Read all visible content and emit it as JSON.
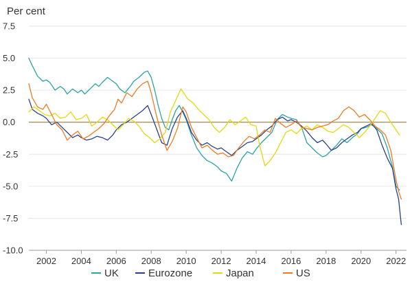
{
  "chart_data": {
    "type": "line",
    "unit_label": "Per cent",
    "ylim": [
      -10.0,
      7.5
    ],
    "yticks": [
      7.5,
      5.0,
      2.5,
      0.0,
      -2.5,
      -5.0,
      -7.5,
      -10.0
    ],
    "ytick_labels": [
      "7.5",
      "5.0",
      "2.5",
      "0.0",
      "-2.5",
      "-5.0",
      "-7.5",
      "-10.0"
    ],
    "xlim": [
      2001.0,
      2022.6
    ],
    "xticks": [
      2002,
      2004,
      2006,
      2008,
      2010,
      2012,
      2014,
      2016,
      2018,
      2020,
      2022
    ],
    "xtick_labels": [
      "2002",
      "2004",
      "2006",
      "2008",
      "2010",
      "2012",
      "2014",
      "2016",
      "2018",
      "2020",
      "2022"
    ],
    "grid": true,
    "legend_position": "bottom",
    "zero_line_color": "#8a6a2a",
    "series": [
      {
        "name": "UK",
        "color": "#2aa3a6",
        "x": [
          2001.0,
          2001.2,
          2001.5,
          2001.8,
          2002.0,
          2002.2,
          2002.5,
          2002.8,
          2003.0,
          2003.2,
          2003.5,
          2003.8,
          2004.0,
          2004.2,
          2004.5,
          2004.8,
          2005.0,
          2005.2,
          2005.5,
          2005.8,
          2006.0,
          2006.2,
          2006.5,
          2006.8,
          2007.0,
          2007.3,
          2007.6,
          2007.8,
          2008.0,
          2008.2,
          2008.4,
          2008.6,
          2008.8,
          2009.0,
          2009.2,
          2009.4,
          2009.6,
          2009.8,
          2010.0,
          2010.3,
          2010.6,
          2010.9,
          2011.2,
          2011.5,
          2011.8,
          2012.0,
          2012.3,
          2012.6,
          2012.9,
          2013.2,
          2013.5,
          2013.8,
          2014.0,
          2014.3,
          2014.6,
          2014.9,
          2015.2,
          2015.5,
          2015.8,
          2016.0,
          2016.3,
          2016.6,
          2016.9,
          2017.2,
          2017.5,
          2017.8,
          2018.0,
          2018.3,
          2018.6,
          2018.9,
          2019.2,
          2019.5,
          2019.8,
          2020.0,
          2020.3,
          2020.6,
          2020.9,
          2021.2,
          2021.5,
          2021.8,
          2022.0,
          2022.2
        ],
        "values": [
          5.0,
          4.4,
          3.6,
          3.2,
          3.3,
          3.1,
          2.5,
          2.8,
          2.6,
          2.2,
          2.6,
          2.3,
          2.5,
          2.2,
          2.6,
          3.0,
          2.8,
          3.1,
          3.5,
          3.2,
          3.0,
          2.6,
          2.3,
          2.8,
          3.2,
          3.5,
          3.9,
          4.0,
          3.5,
          2.5,
          1.3,
          0.3,
          -0.4,
          -0.6,
          0.2,
          0.9,
          1.3,
          0.8,
          0.2,
          -1.0,
          -2.0,
          -2.6,
          -3.0,
          -3.2,
          -3.5,
          -3.8,
          -4.0,
          -4.6,
          -3.6,
          -2.8,
          -2.3,
          -2.5,
          -2.1,
          -1.6,
          -1.2,
          -0.8,
          0.2,
          0.6,
          0.4,
          0.3,
          0.2,
          -0.4,
          -1.6,
          -2.0,
          -2.4,
          -2.7,
          -2.6,
          -2.2,
          -1.8,
          -1.3,
          -1.6,
          -1.2,
          -0.9,
          -0.5,
          -0.4,
          -0.2,
          -0.5,
          -0.9,
          -2.0,
          -3.5,
          -5.0,
          -5.3
        ]
      },
      {
        "name": "Eurozone",
        "color": "#27408b",
        "x": [
          2001.0,
          2001.2,
          2001.5,
          2001.8,
          2002.0,
          2002.3,
          2002.6,
          2002.9,
          2003.2,
          2003.5,
          2003.8,
          2004.0,
          2004.3,
          2004.6,
          2004.9,
          2005.2,
          2005.5,
          2005.8,
          2006.0,
          2006.3,
          2006.6,
          2006.9,
          2007.2,
          2007.5,
          2007.8,
          2008.0,
          2008.3,
          2008.6,
          2008.9,
          2009.2,
          2009.5,
          2009.8,
          2010.0,
          2010.3,
          2010.6,
          2010.9,
          2011.2,
          2011.5,
          2011.8,
          2012.0,
          2012.3,
          2012.6,
          2012.9,
          2013.2,
          2013.5,
          2013.8,
          2014.0,
          2014.3,
          2014.6,
          2014.9,
          2015.2,
          2015.5,
          2015.8,
          2016.0,
          2016.3,
          2016.6,
          2016.9,
          2017.2,
          2017.5,
          2017.8,
          2018.0,
          2018.3,
          2018.6,
          2018.9,
          2019.2,
          2019.5,
          2019.8,
          2020.0,
          2020.3,
          2020.6,
          2020.9,
          2021.2,
          2021.5,
          2021.8,
          2022.0,
          2022.15,
          2022.3
        ],
        "values": [
          1.8,
          1.0,
          0.7,
          0.5,
          0.3,
          -0.2,
          0.0,
          -0.4,
          -0.8,
          -1.2,
          -1.0,
          -1.2,
          -1.4,
          -1.3,
          -1.1,
          -1.2,
          -1.4,
          -1.0,
          -0.6,
          -0.2,
          0.0,
          0.3,
          0.6,
          0.9,
          1.3,
          0.6,
          -0.5,
          -1.6,
          -1.8,
          -0.5,
          0.4,
          0.9,
          0.3,
          -0.8,
          -1.4,
          -1.8,
          -1.6,
          -1.9,
          -2.1,
          -2.0,
          -2.3,
          -2.6,
          -2.2,
          -1.9,
          -1.6,
          -1.5,
          -1.3,
          -1.0,
          -0.6,
          -0.3,
          0.2,
          0.4,
          0.1,
          0.2,
          0.0,
          -0.3,
          -0.7,
          -1.2,
          -1.6,
          -1.4,
          -1.7,
          -2.2,
          -2.0,
          -1.6,
          -1.3,
          -1.0,
          -0.8,
          -0.5,
          -0.3,
          -0.1,
          -0.6,
          -1.8,
          -2.8,
          -3.6,
          -5.2,
          -6.0,
          -8.0
        ]
      },
      {
        "name": "Japan",
        "color": "#e5d70c",
        "x": [
          2001.0,
          2001.3,
          2001.6,
          2001.9,
          2002.2,
          2002.5,
          2002.8,
          2003.1,
          2003.4,
          2003.7,
          2004.0,
          2004.3,
          2004.6,
          2004.9,
          2005.2,
          2005.5,
          2005.8,
          2006.1,
          2006.4,
          2006.7,
          2007.0,
          2007.3,
          2007.6,
          2007.9,
          2008.2,
          2008.5,
          2008.8,
          2009.1,
          2009.4,
          2009.7,
          2009.9,
          2010.1,
          2010.4,
          2010.7,
          2011.0,
          2011.3,
          2011.6,
          2011.9,
          2012.2,
          2012.5,
          2012.8,
          2013.1,
          2013.4,
          2013.7,
          2014.0,
          2014.2,
          2014.5,
          2014.8,
          2015.1,
          2015.4,
          2015.7,
          2016.0,
          2016.3,
          2016.6,
          2016.9,
          2017.2,
          2017.5,
          2017.8,
          2018.1,
          2018.4,
          2018.7,
          2019.0,
          2019.3,
          2019.6,
          2019.9,
          2020.2,
          2020.5,
          2020.8,
          2021.1,
          2021.4,
          2021.7,
          2022.0,
          2022.2
        ],
        "values": [
          0.8,
          1.2,
          0.9,
          0.6,
          0.5,
          0.7,
          0.3,
          0.4,
          0.8,
          0.2,
          0.3,
          0.6,
          -0.3,
          0.0,
          0.4,
          0.2,
          -0.2,
          -0.6,
          -0.2,
          0.3,
          0.1,
          -0.3,
          -0.9,
          -1.2,
          -1.6,
          -1.3,
          -0.8,
          0.8,
          1.7,
          2.6,
          2.2,
          1.8,
          1.5,
          1.0,
          0.6,
          0.2,
          -0.4,
          -0.8,
          -0.4,
          0.2,
          -0.2,
          0.1,
          0.4,
          -0.2,
          -0.3,
          -1.8,
          -3.4,
          -3.0,
          -2.4,
          -1.6,
          -0.8,
          -0.6,
          -0.9,
          -0.5,
          -0.3,
          -0.6,
          -0.2,
          -0.4,
          -0.7,
          -0.8,
          -0.5,
          -0.2,
          -0.4,
          -0.8,
          -1.2,
          -0.8,
          -0.3,
          0.3,
          0.9,
          0.7,
          0.0,
          -0.6,
          -1.0
        ]
      },
      {
        "name": "US",
        "color": "#f07a22",
        "x": [
          2001.0,
          2001.2,
          2001.5,
          2001.8,
          2002.0,
          2002.3,
          2002.6,
          2002.9,
          2003.2,
          2003.5,
          2003.8,
          2004.1,
          2004.4,
          2004.7,
          2005.0,
          2005.3,
          2005.6,
          2005.9,
          2006.1,
          2006.3,
          2006.6,
          2006.9,
          2007.2,
          2007.5,
          2007.8,
          2008.0,
          2008.3,
          2008.6,
          2008.9,
          2009.2,
          2009.5,
          2009.8,
          2010.0,
          2010.3,
          2010.6,
          2010.9,
          2011.2,
          2011.5,
          2011.8,
          2012.1,
          2012.4,
          2012.7,
          2013.0,
          2013.3,
          2013.6,
          2013.9,
          2014.2,
          2014.5,
          2014.8,
          2015.1,
          2015.4,
          2015.7,
          2016.0,
          2016.3,
          2016.6,
          2016.9,
          2017.2,
          2017.5,
          2017.8,
          2018.1,
          2018.4,
          2018.7,
          2019.0,
          2019.3,
          2019.6,
          2019.9,
          2020.2,
          2020.5,
          2020.8,
          2021.1,
          2021.4,
          2021.7,
          2022.0,
          2022.15,
          2022.3
        ],
        "values": [
          3.0,
          1.9,
          1.2,
          1.0,
          1.4,
          0.6,
          -0.2,
          -0.6,
          -1.4,
          -1.0,
          -0.7,
          -1.3,
          -1.1,
          -0.8,
          -0.5,
          -0.1,
          0.5,
          1.0,
          1.8,
          1.5,
          2.3,
          2.0,
          2.6,
          3.0,
          3.2,
          2.3,
          0.5,
          -1.0,
          -2.2,
          -1.5,
          -0.5,
          1.2,
          0.8,
          -0.4,
          -1.2,
          -2.0,
          -1.8,
          -2.2,
          -2.5,
          -2.4,
          -2.7,
          -2.6,
          -2.0,
          -1.5,
          -1.1,
          -1.3,
          -1.0,
          -0.6,
          -0.8,
          0.3,
          -0.1,
          -0.4,
          -0.2,
          0.1,
          -0.4,
          -0.5,
          -0.6,
          -0.4,
          -0.3,
          -0.2,
          0.1,
          0.3,
          0.9,
          1.2,
          0.9,
          0.4,
          0.6,
          0.2,
          -0.3,
          -0.6,
          -1.0,
          -2.2,
          -4.5,
          -5.4,
          -6.0
        ]
      }
    ]
  }
}
